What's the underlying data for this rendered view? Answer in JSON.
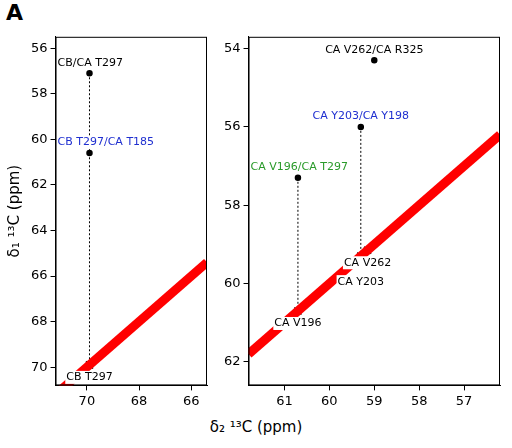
{
  "panel_label": "A",
  "x_label": "δ₂ ¹³C (ppm)",
  "y_label": "δ₁ ¹³C (ppm)",
  "chart_data": [
    {
      "type": "scatter",
      "xlim": [
        71.2,
        65.4
      ],
      "xticks": [
        70,
        68,
        66
      ],
      "ylim": [
        70.8,
        55.5
      ],
      "yticks": [
        56,
        58,
        60,
        62,
        64,
        66,
        68,
        70
      ],
      "grid": false,
      "diagonal": {
        "color": "#ff0000",
        "points": [
          [
            71.2,
            71.2
          ],
          [
            65.4,
            65.4
          ]
        ]
      },
      "guides": [
        {
          "x": 69.9,
          "y": [
            57.1,
            69.9
          ]
        }
      ],
      "peaks": [
        {
          "label": "CB/CA T297",
          "x": 69.9,
          "y": 57.1,
          "color": "#000000",
          "marker": "circle"
        },
        {
          "label": "CB T297/CA T185",
          "x": 69.9,
          "y": 60.6,
          "color": "#1f2fd0",
          "marker": "circle"
        },
        {
          "label": "CB T297",
          "x": 69.9,
          "y": 69.9,
          "color": "#000000",
          "marker": "x"
        }
      ]
    },
    {
      "type": "scatter",
      "xlim": [
        61.8,
        56.2
      ],
      "xticks": [
        61,
        60,
        59,
        58,
        57
      ],
      "ylim": [
        62.6,
        53.7
      ],
      "yticks": [
        54,
        56,
        58,
        60,
        62
      ],
      "grid": false,
      "diagonal": {
        "color": "#ff0000",
        "points": [
          [
            61.8,
            61.8
          ],
          [
            56.2,
            56.2
          ]
        ]
      },
      "guides": [
        {
          "x": 60.7,
          "y": [
            57.3,
            60.7
          ]
        },
        {
          "x": 59.3,
          "y": [
            56.0,
            59.3
          ]
        }
      ],
      "peaks": [
        {
          "label": "CA V262/CA R325",
          "x": 59.0,
          "y": 54.3,
          "color": "#000000",
          "marker": "circle"
        },
        {
          "label": "CA Y203/CA Y198",
          "x": 59.3,
          "y": 56.0,
          "color": "#1f2fd0",
          "marker": "circle"
        },
        {
          "label": "CA V196/CA T297",
          "x": 60.7,
          "y": 57.3,
          "color": "#2a9a2a",
          "marker": "circle"
        },
        {
          "label": "CA V262",
          "x": 59.15,
          "y": 59.15,
          "color": "#000000",
          "marker": "x"
        },
        {
          "label": "CA Y203",
          "x": 59.3,
          "y": 59.3,
          "color": "#000000",
          "marker": "x"
        },
        {
          "label": "CA V196",
          "x": 60.7,
          "y": 60.7,
          "color": "#000000",
          "marker": "x"
        }
      ]
    }
  ]
}
